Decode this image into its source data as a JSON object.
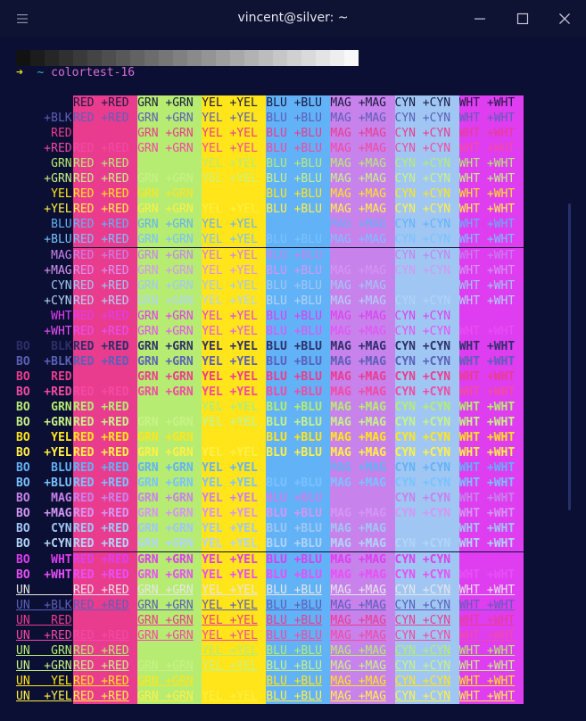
{
  "window": {
    "title": "vincent@silver: ~",
    "menu_icon": "hamburger-menu-icon",
    "minimize_icon": "minimize-icon",
    "maximize_icon": "maximize-icon",
    "close_icon": "close-icon"
  },
  "terminal": {
    "prompt": {
      "arrow": "➜",
      "cwd": "~",
      "command": "colortest-16",
      "arrow_color": "#e5e510",
      "cwd_color": "#29b8db",
      "command_color": "#d670d6"
    },
    "grayscale": [
      "#121212",
      "#1c1c1c",
      "#262626",
      "#303030",
      "#3a3a3a",
      "#444444",
      "#4e4e4e",
      "#585858",
      "#626262",
      "#6c6c6c",
      "#767676",
      "#808080",
      "#8a8a8a",
      "#949494",
      "#9e9e9e",
      "#a8a8a8",
      "#b2b2b2",
      "#bcbcbc",
      "#c6c6c6",
      "#d0d0d0",
      "#dadada",
      "#e4e4e4",
      "#eeeeee",
      "#f8f8f8"
    ],
    "header": {
      "default": "",
      "cells": [
        "RED +RED",
        "GRN +GRN",
        "YEL +YEL",
        "BLU +BLU",
        "MAG +MAG",
        "CYN +CYN",
        "WHT +WHT"
      ]
    },
    "rows": [
      {
        "label": "    +BLK",
        "fg": "blk_b",
        "bold": false,
        "under": false
      },
      {
        "label": "     RED",
        "fg": "red",
        "bold": false,
        "under": false
      },
      {
        "label": "    +RED",
        "fg": "red_b",
        "bold": false,
        "under": false
      },
      {
        "label": "     GRN",
        "fg": "grn",
        "bold": false,
        "under": false
      },
      {
        "label": "    +GRN",
        "fg": "grn_b",
        "bold": false,
        "under": false
      },
      {
        "label": "     YEL",
        "fg": "yel",
        "bold": false,
        "under": false
      },
      {
        "label": "    +YEL",
        "fg": "yel_b",
        "bold": false,
        "under": false
      },
      {
        "label": "     BLU",
        "fg": "blu",
        "bold": false,
        "under": false
      },
      {
        "label": "    +BLU",
        "fg": "blu_b",
        "bold": false,
        "under": false
      },
      {
        "label": "     MAG",
        "fg": "mag",
        "bold": false,
        "under": false
      },
      {
        "label": "    +MAG",
        "fg": "mag_b",
        "bold": false,
        "under": false
      },
      {
        "label": "     CYN",
        "fg": "cyn",
        "bold": false,
        "under": false
      },
      {
        "label": "    +CYN",
        "fg": "cyn_b",
        "bold": false,
        "under": false
      },
      {
        "label": "     WHT",
        "fg": "wht",
        "bold": false,
        "under": false
      },
      {
        "label": "    +WHT",
        "fg": "wht_b",
        "bold": false,
        "under": false
      },
      {
        "label": "BO   BLK",
        "fg": "blk",
        "bold": true,
        "under": false
      },
      {
        "label": "BO  +BLK",
        "fg": "blk_b",
        "bold": true,
        "under": false
      },
      {
        "label": "BO   RED",
        "fg": "red",
        "bold": true,
        "under": false
      },
      {
        "label": "BO  +RED",
        "fg": "red_b",
        "bold": true,
        "under": false
      },
      {
        "label": "BO   GRN",
        "fg": "grn",
        "bold": true,
        "under": false
      },
      {
        "label": "BO  +GRN",
        "fg": "grn_b",
        "bold": true,
        "under": false
      },
      {
        "label": "BO   YEL",
        "fg": "yel",
        "bold": true,
        "under": false
      },
      {
        "label": "BO  +YEL",
        "fg": "yel_b",
        "bold": true,
        "under": false
      },
      {
        "label": "BO   BLU",
        "fg": "blu",
        "bold": true,
        "under": false
      },
      {
        "label": "BO  +BLU",
        "fg": "blu_b",
        "bold": true,
        "under": false
      },
      {
        "label": "BO   MAG",
        "fg": "mag",
        "bold": true,
        "under": false
      },
      {
        "label": "BO  +MAG",
        "fg": "mag_b",
        "bold": true,
        "under": false
      },
      {
        "label": "BO   CYN",
        "fg": "cyn",
        "bold": true,
        "under": false
      },
      {
        "label": "BO  +CYN",
        "fg": "cyn_b",
        "bold": true,
        "under": false
      },
      {
        "label": "BO   WHT",
        "fg": "wht",
        "bold": true,
        "under": false
      },
      {
        "label": "BO  +WHT",
        "fg": "wht_b",
        "bold": true,
        "under": false
      },
      {
        "label": "UN      ",
        "fg": "default",
        "bold": false,
        "under": true
      },
      {
        "label": "UN  +BLK",
        "fg": "blk_b",
        "bold": false,
        "under": true
      },
      {
        "label": "UN   RED",
        "fg": "red",
        "bold": false,
        "under": true
      },
      {
        "label": "UN  +RED",
        "fg": "red_b",
        "bold": false,
        "under": true
      },
      {
        "label": "UN   GRN",
        "fg": "grn",
        "bold": false,
        "under": true
      },
      {
        "label": "UN  +GRN",
        "fg": "grn_b",
        "bold": false,
        "under": true
      },
      {
        "label": "UN   YEL",
        "fg": "yel",
        "bold": false,
        "under": true
      },
      {
        "label": "UN  +YEL",
        "fg": "yel_b",
        "bold": false,
        "under": true
      }
    ],
    "colors": {
      "default": "#e6e6e6",
      "blk": "#2e2e6a",
      "blk_b": "#5b5fb8",
      "red": "#ea3c8f",
      "red_b": "#f24aa3",
      "grn": "#b6ec72",
      "grn_b": "#c8f286",
      "yel": "#ffe51a",
      "yel_b": "#fff044",
      "blu": "#62b2f7",
      "blu_b": "#79c2ff",
      "mag": "#c782ec",
      "mag_b": "#d596f4",
      "cyn": "#a0c7f4",
      "cyn_b": "#b1d4f8",
      "wht": "#de3df0",
      "wht_b": "#e84ff6"
    },
    "bg_columns": [
      "red",
      "grn",
      "yel",
      "blu",
      "mag",
      "cyn",
      "wht"
    ]
  }
}
